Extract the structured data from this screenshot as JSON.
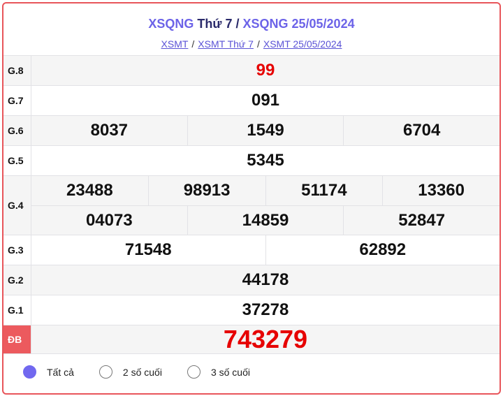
{
  "header": {
    "title_link1": "XSQNG",
    "title_mid": "Thứ 7 /",
    "title_link2": "XSQNG 25/05/2024",
    "breadcrumbs": [
      "XSMT",
      "XSMT Thứ 7",
      "XSMT 25/05/2024"
    ],
    "separator": "/"
  },
  "prizes": {
    "g8": {
      "label": "G.8",
      "values": [
        "99"
      ]
    },
    "g7": {
      "label": "G.7",
      "values": [
        "091"
      ]
    },
    "g6": {
      "label": "G.6",
      "values": [
        "8037",
        "1549",
        "6704"
      ]
    },
    "g5": {
      "label": "G.5",
      "values": [
        "5345"
      ]
    },
    "g4": {
      "label": "G.4",
      "values": [
        "23488",
        "98913",
        "51174",
        "13360",
        "04073",
        "14859",
        "52847"
      ]
    },
    "g3": {
      "label": "G.3",
      "values": [
        "71548",
        "62892"
      ]
    },
    "g2": {
      "label": "G.2",
      "values": [
        "44178"
      ]
    },
    "g1": {
      "label": "G.1",
      "values": [
        "37278"
      ]
    },
    "db": {
      "label": "ĐB",
      "values": [
        "743279"
      ]
    }
  },
  "options": [
    {
      "label": "Tất cả",
      "selected": true
    },
    {
      "label": "2 số cuối",
      "selected": false
    },
    {
      "label": "3 số cuối",
      "selected": false
    }
  ],
  "colors": {
    "accent": "#6c63e8",
    "special": "#e60000",
    "border": "#e8555a"
  }
}
